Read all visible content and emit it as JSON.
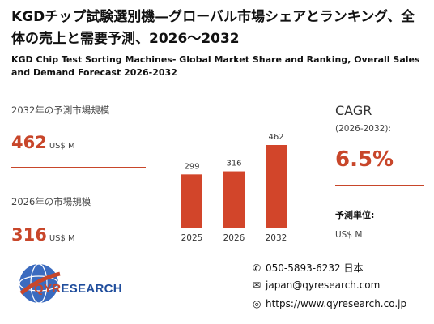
{
  "title_jp": "KGDチップ試験選別機—グローバル市場シェアとランキング、全体の売上と需要予測、2026～2032",
  "title_en": "KGD Chip Test Sorting Machines- Global Market Share and Ranking, Overall Sales and Demand Forecast 2026-2032",
  "left_panel": {
    "forecast_label": "2032年の予測市場規模",
    "forecast_value": "462",
    "forecast_unit": "US$ M",
    "current_label": "2026年の市場規模",
    "current_value": "316",
    "current_unit": "US$ M"
  },
  "chart_data": {
    "type": "bar",
    "categories": [
      "2025",
      "2026",
      "2032"
    ],
    "values": [
      299,
      316,
      462
    ],
    "title": "",
    "xlabel": "",
    "ylabel": "",
    "ylim": [
      0,
      462
    ],
    "grid": false,
    "legend": "none",
    "bar_color": "#d2452a"
  },
  "cagr": {
    "label": "CAGR",
    "range": "(2026-2032):",
    "value": "6.5%"
  },
  "unit_info": {
    "title": "予測単位:",
    "value": "US$ M"
  },
  "logo": {
    "text_q": "QYR",
    "text_rest": "ESEARCH"
  },
  "contact": {
    "phone": "050-5893-6232 日本",
    "email": "japan@qyresearch.com",
    "website": "https://www.qyresearch.co.jp",
    "phone_icon": "phone-icon",
    "email_icon": "envelope-icon",
    "web_icon": "globe-icon"
  },
  "colors": {
    "accent": "#c8462a",
    "brand_blue": "#1f4d9c"
  }
}
